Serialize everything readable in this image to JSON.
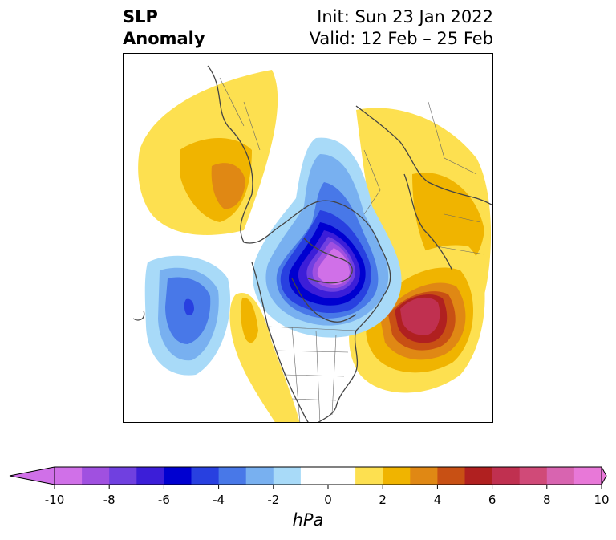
{
  "title": {
    "left_line1": "SLP",
    "left_line2": "Anomaly",
    "right_line1": "Init: Sun 23 Jan 2022",
    "right_line2": "Valid: 12 Feb – 25 Feb"
  },
  "colorbar": {
    "unit": "hPa",
    "tick_labels": [
      "-10",
      "-8",
      "-6",
      "-4",
      "-2",
      "0",
      "2",
      "4",
      "6",
      "8",
      "10"
    ],
    "range": [
      -10,
      10
    ],
    "step": 1,
    "colors": [
      "#d070e8",
      "#a050e0",
      "#7040e0",
      "#3c1ed8",
      "#0000d0",
      "#2840e0",
      "#4878e8",
      "#78b0f0",
      "#a8daf8",
      "#ffffff",
      "#ffffff",
      "#fde050",
      "#f0b400",
      "#e08814",
      "#c85014",
      "#b02020",
      "#c03050",
      "#d04a78",
      "#d864b0",
      "#e878d8"
    ]
  },
  "map": {
    "projection": "north-polar-stereographic",
    "features": [
      {
        "name": "arctic-low-anomaly",
        "sign": "negative",
        "peak_hpa": -10
      },
      {
        "name": "north-pacific-low-anomaly",
        "sign": "negative",
        "peak_hpa": -5
      },
      {
        "name": "north-atlantic-high-anomaly",
        "sign": "positive",
        "peak_hpa": 7
      },
      {
        "name": "europe-high-anomaly",
        "sign": "positive",
        "peak_hpa": 3
      },
      {
        "name": "siberia-high-anomaly",
        "sign": "positive",
        "peak_hpa": 3
      },
      {
        "name": "western-us-high-anomaly",
        "sign": "positive",
        "peak_hpa": 2
      }
    ]
  }
}
